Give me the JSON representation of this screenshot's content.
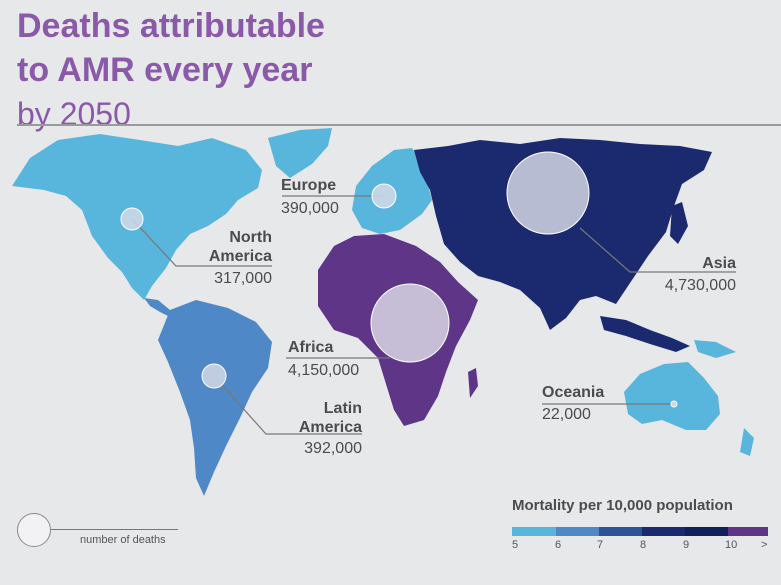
{
  "title": {
    "line1": "Deaths attributable",
    "line2": "to AMR every year",
    "line3": "by 2050"
  },
  "regions": [
    {
      "name": "North America",
      "name_line1": "North",
      "name_line2": "America",
      "deaths": "317,000",
      "color": "#58b5dc"
    },
    {
      "name": "Europe",
      "deaths": "390,000",
      "color": "#58b5dc"
    },
    {
      "name": "Asia",
      "deaths": "4,730,000",
      "color": "#1b2a6e"
    },
    {
      "name": "Africa",
      "deaths": "4,150,000",
      "color": "#5e3587"
    },
    {
      "name": "Latin America",
      "name_line1": "Latin",
      "name_line2": "America",
      "deaths": "392,000",
      "color": "#4f88c6"
    },
    {
      "name": "Oceania",
      "deaths": "22,000",
      "color": "#58b5dc"
    }
  ],
  "legend": {
    "title": "Mortality per 10,000 population",
    "ticks": [
      "5",
      "6",
      "7",
      "8",
      "9",
      "10",
      ">"
    ],
    "colors": [
      "#58b5dc",
      "#4f88c6",
      "#2b5598",
      "#1b2a6e",
      "#14205a",
      "#0f1c50",
      "#5e3587"
    ]
  },
  "key": {
    "label": "number of deaths"
  }
}
